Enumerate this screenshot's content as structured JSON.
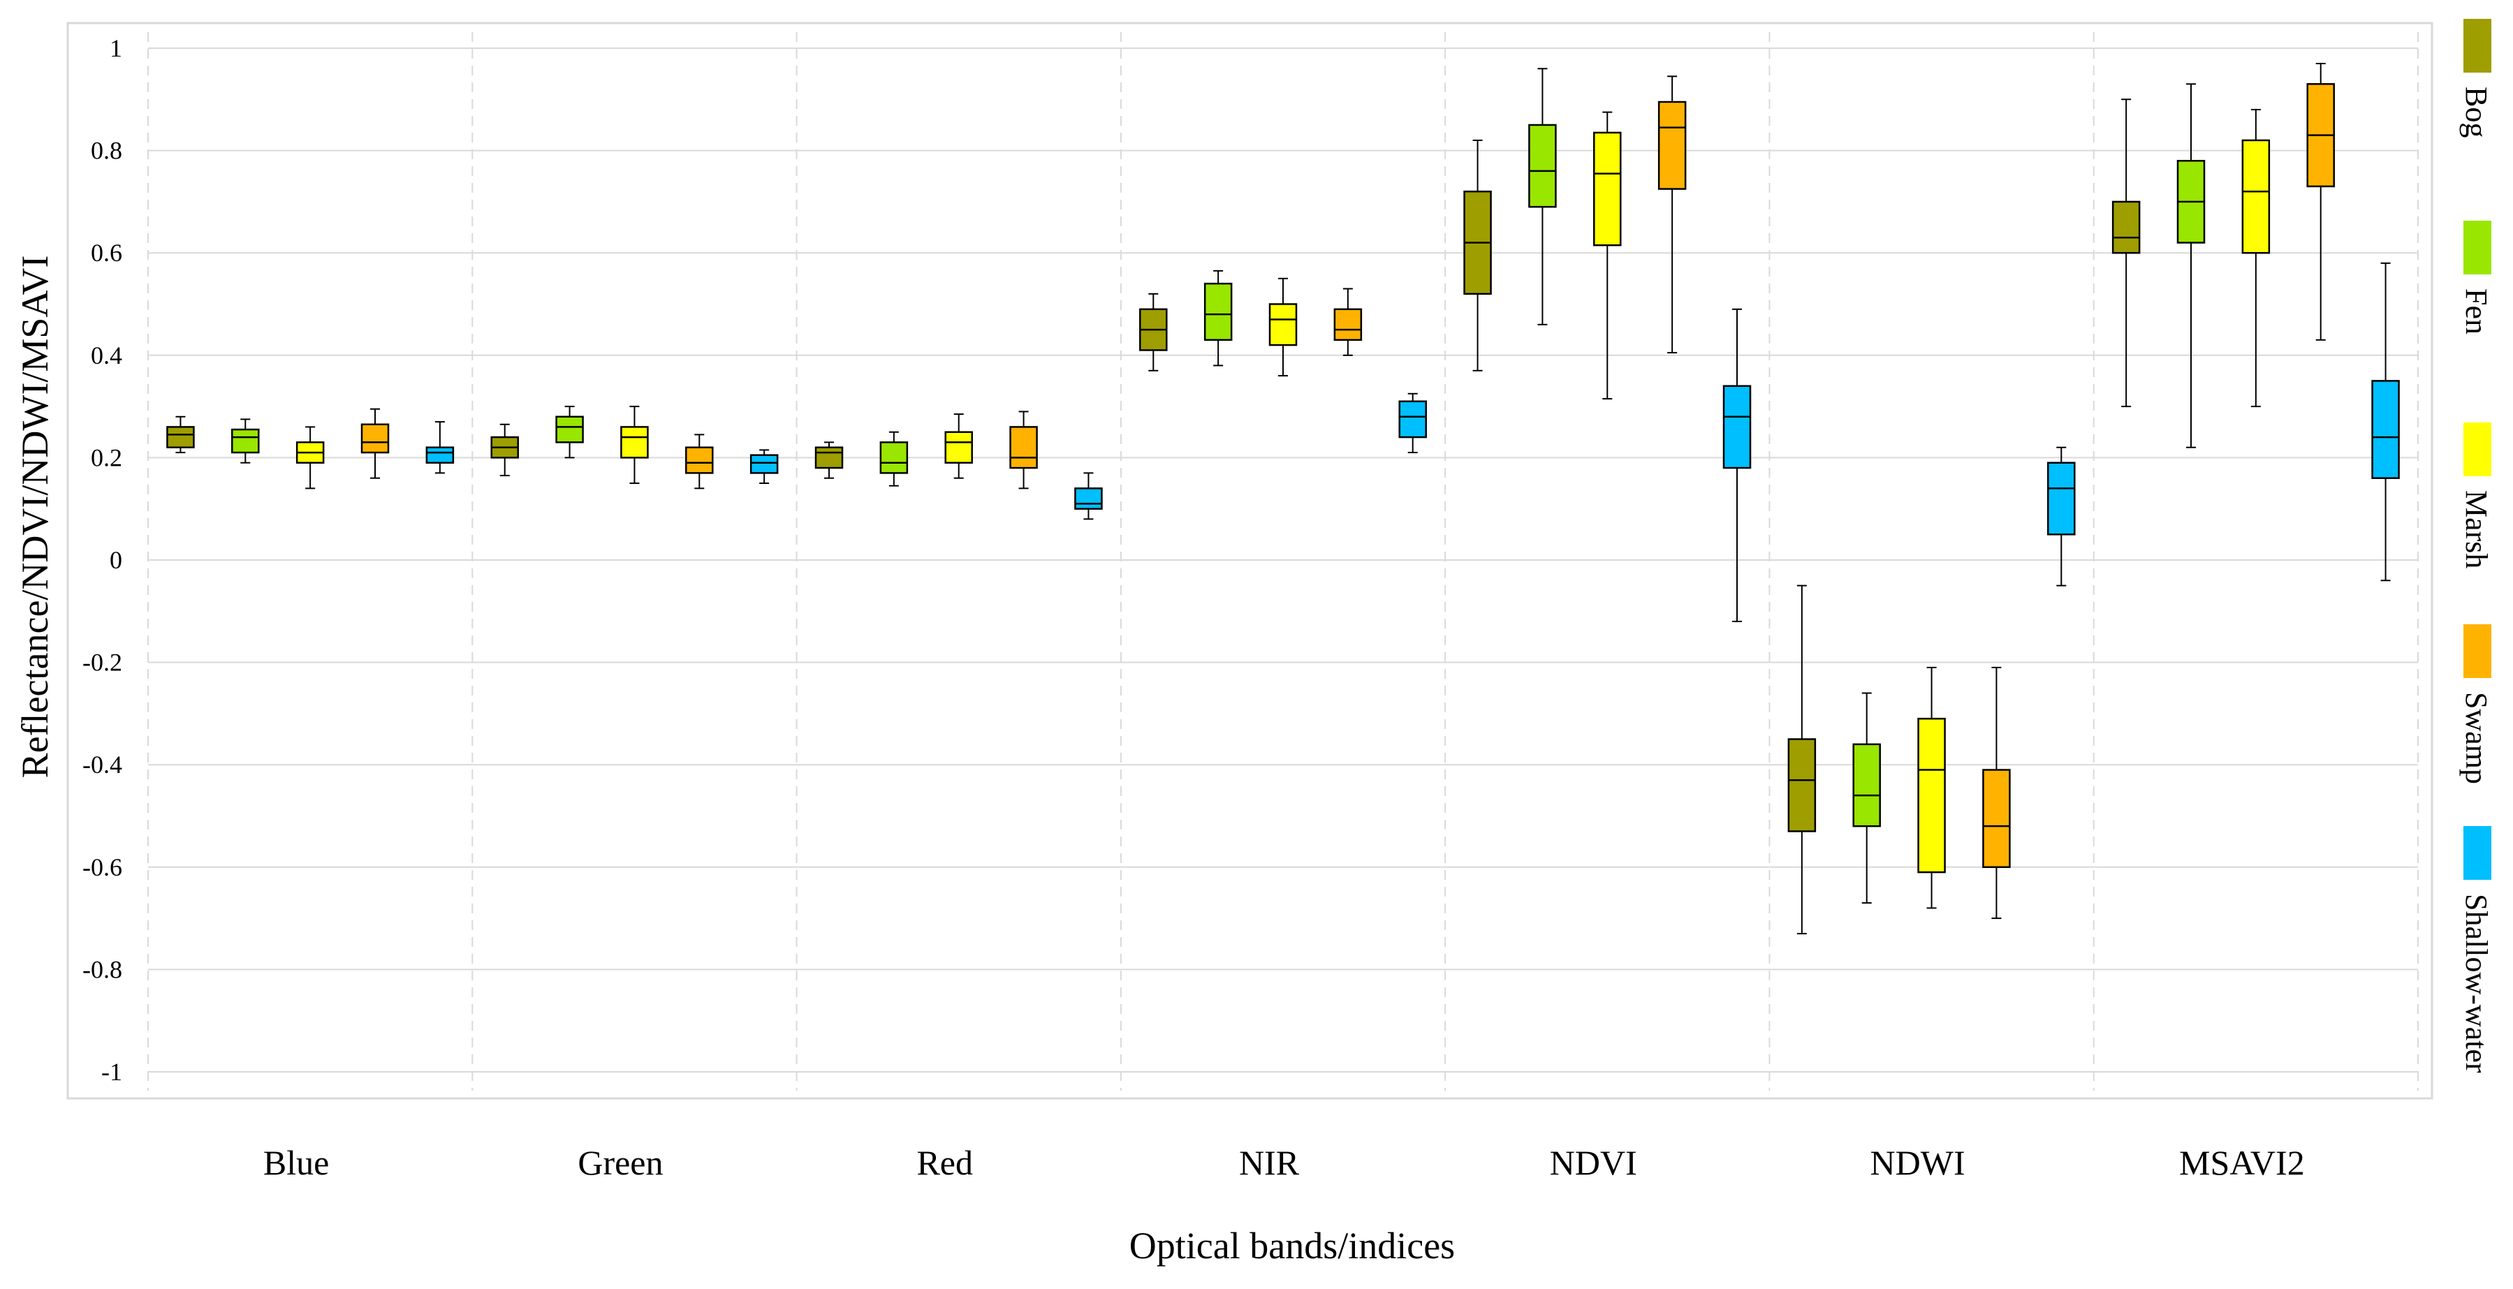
{
  "chart_data": {
    "type": "boxplot",
    "title": "",
    "xlabel": "Optical bands/indices",
    "ylabel": "Reflectance/NDVI/NDWI/MSAVI",
    "ylim": [
      -1,
      1
    ],
    "yticks": [
      1,
      0.8,
      0.6,
      0.4,
      0.2,
      0,
      -0.2,
      -0.4,
      -0.6,
      -0.8,
      -1
    ],
    "ytick_labels": [
      "1",
      "0.8",
      "0.6",
      "0.4",
      "0.2",
      "0",
      "-0.2",
      "-0.4",
      "-0.6",
      "-0.8",
      "-1"
    ],
    "grid": true,
    "legend_position": "right",
    "categories": [
      "Blue",
      "Green",
      "Red",
      "NIR",
      "NDVI",
      "NDWI",
      "MSAVI2"
    ],
    "series": [
      {
        "name": "Bog",
        "color": "#9E9E00",
        "boxes": [
          {
            "min": 0.21,
            "q1": 0.22,
            "median": 0.245,
            "q3": 0.26,
            "max": 0.28
          },
          {
            "min": 0.165,
            "q1": 0.2,
            "median": 0.22,
            "q3": 0.24,
            "max": 0.265
          },
          {
            "min": 0.16,
            "q1": 0.18,
            "median": 0.21,
            "q3": 0.22,
            "max": 0.23
          },
          {
            "min": 0.37,
            "q1": 0.41,
            "median": 0.45,
            "q3": 0.49,
            "max": 0.52
          },
          {
            "min": 0.37,
            "q1": 0.52,
            "median": 0.62,
            "q3": 0.72,
            "max": 0.82
          },
          {
            "min": -0.73,
            "q1": -0.53,
            "median": -0.43,
            "q3": -0.35,
            "max": -0.05
          },
          {
            "min": 0.3,
            "q1": 0.6,
            "median": 0.63,
            "q3": 0.7,
            "max": 0.9
          }
        ]
      },
      {
        "name": "Fen",
        "color": "#99E600",
        "boxes": [
          {
            "min": 0.19,
            "q1": 0.21,
            "median": 0.24,
            "q3": 0.255,
            "max": 0.275
          },
          {
            "min": 0.2,
            "q1": 0.23,
            "median": 0.26,
            "q3": 0.28,
            "max": 0.3
          },
          {
            "min": 0.145,
            "q1": 0.17,
            "median": 0.19,
            "q3": 0.23,
            "max": 0.25
          },
          {
            "min": 0.38,
            "q1": 0.43,
            "median": 0.48,
            "q3": 0.54,
            "max": 0.565
          },
          {
            "min": 0.46,
            "q1": 0.69,
            "median": 0.76,
            "q3": 0.85,
            "max": 0.96
          },
          {
            "min": -0.67,
            "q1": -0.52,
            "median": -0.46,
            "q3": -0.36,
            "max": -0.26
          },
          {
            "min": 0.22,
            "q1": 0.62,
            "median": 0.7,
            "q3": 0.78,
            "max": 0.93
          }
        ]
      },
      {
        "name": "Marsh",
        "color": "#FFFF00",
        "boxes": [
          {
            "min": 0.14,
            "q1": 0.19,
            "median": 0.21,
            "q3": 0.23,
            "max": 0.26
          },
          {
            "min": 0.15,
            "q1": 0.2,
            "median": 0.24,
            "q3": 0.26,
            "max": 0.3
          },
          {
            "min": 0.16,
            "q1": 0.19,
            "median": 0.23,
            "q3": 0.25,
            "max": 0.285
          },
          {
            "min": 0.36,
            "q1": 0.42,
            "median": 0.47,
            "q3": 0.5,
            "max": 0.55
          },
          {
            "min": 0.315,
            "q1": 0.615,
            "median": 0.755,
            "q3": 0.835,
            "max": 0.875
          },
          {
            "min": -0.68,
            "q1": -0.61,
            "median": -0.41,
            "q3": -0.31,
            "max": -0.21
          },
          {
            "min": 0.3,
            "q1": 0.6,
            "median": 0.72,
            "q3": 0.82,
            "max": 0.88
          }
        ]
      },
      {
        "name": "Swamp",
        "color": "#FFB300",
        "boxes": [
          {
            "min": 0.16,
            "q1": 0.21,
            "median": 0.23,
            "q3": 0.265,
            "max": 0.295
          },
          {
            "min": 0.14,
            "q1": 0.17,
            "median": 0.19,
            "q3": 0.22,
            "max": 0.245
          },
          {
            "min": 0.14,
            "q1": 0.18,
            "median": 0.2,
            "q3": 0.26,
            "max": 0.29
          },
          {
            "min": 0.4,
            "q1": 0.43,
            "median": 0.45,
            "q3": 0.49,
            "max": 0.53
          },
          {
            "min": 0.405,
            "q1": 0.725,
            "median": 0.845,
            "q3": 0.895,
            "max": 0.945
          },
          {
            "min": -0.7,
            "q1": -0.6,
            "median": -0.52,
            "q3": -0.41,
            "max": -0.21
          },
          {
            "min": 0.43,
            "q1": 0.73,
            "median": 0.83,
            "q3": 0.93,
            "max": 0.97
          }
        ]
      },
      {
        "name": "Shallow-water",
        "color": "#00BFFF",
        "boxes": [
          {
            "min": 0.17,
            "q1": 0.19,
            "median": 0.21,
            "q3": 0.22,
            "max": 0.27
          },
          {
            "min": 0.15,
            "q1": 0.17,
            "median": 0.19,
            "q3": 0.205,
            "max": 0.215
          },
          {
            "min": 0.08,
            "q1": 0.1,
            "median": 0.11,
            "q3": 0.14,
            "max": 0.17
          },
          {
            "min": 0.21,
            "q1": 0.24,
            "median": 0.28,
            "q3": 0.31,
            "max": 0.325
          },
          {
            "min": -0.12,
            "q1": 0.18,
            "median": 0.28,
            "q3": 0.34,
            "max": 0.49
          },
          {
            "min": -0.05,
            "q1": 0.05,
            "median": 0.14,
            "q3": 0.19,
            "max": 0.22
          },
          {
            "min": -0.04,
            "q1": 0.16,
            "median": 0.24,
            "q3": 0.35,
            "max": 0.58
          }
        ]
      }
    ]
  }
}
